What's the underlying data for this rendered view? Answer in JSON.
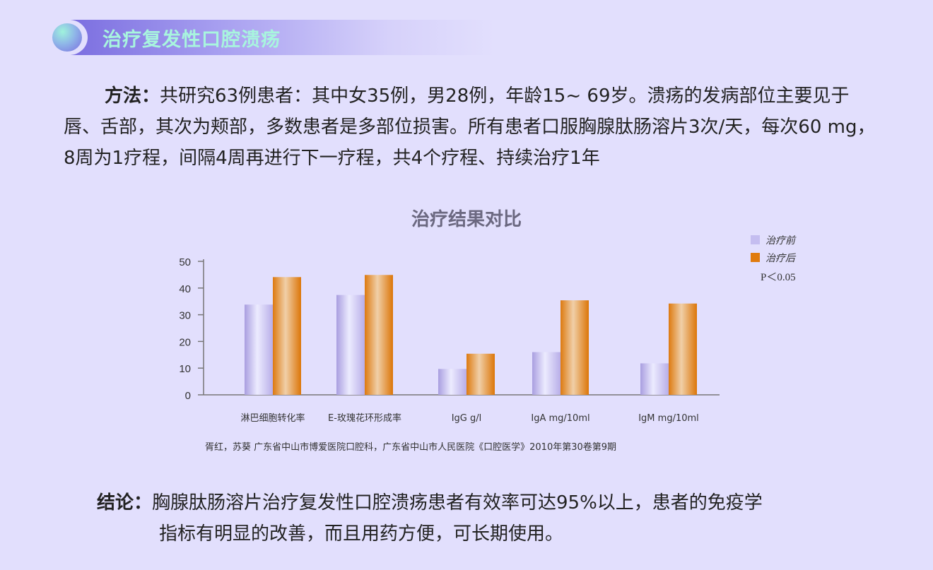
{
  "header": {
    "title": "治疗复发性口腔溃疡"
  },
  "method": {
    "label": "方法：",
    "text": "共研究63例患者：其中女35例，男28例，年龄15~ 69岁。溃疡的发病部位主要见于唇、舌部，其次为颊部，多数患者是多部位损害。所有患者口服胸腺肽肠溶片3次/天，每次60 mg，8周为1疗程，间隔4周再进行下一疗程，共4个疗程、持续治疗1年"
  },
  "chart_data": {
    "type": "bar",
    "title": "治疗结果对比",
    "categories": [
      "淋巴细胞转化率",
      "E-玫瑰花环形成率",
      "IgG g/l",
      "IgA mg/10ml",
      "IgM mg/10ml"
    ],
    "series": [
      {
        "name": "治疗前",
        "color": "#c4bdf0",
        "values": [
          33.8,
          37.4,
          9.7,
          16.0,
          11.8
        ]
      },
      {
        "name": "治疗后",
        "color": "#e07b0e",
        "values": [
          44.1,
          44.9,
          15.4,
          35.4,
          34.2
        ]
      }
    ],
    "ylim": [
      0,
      50
    ],
    "yticks": [
      0,
      10,
      20,
      30,
      40,
      50
    ],
    "grid": false,
    "legend_position": "top-right",
    "annotation": "P＜0.05",
    "source": "胥红，苏葵    广东省中山市博爱医院口腔科，广东省中山市人民医院《口腔医学》2010年第30卷第9期"
  },
  "conclusion": {
    "label": "结论：",
    "line1": "胸腺肽肠溶片治疗复发性口腔溃疡患者有效率可达95%以上，患者的免疫学",
    "line2": "指标有明显的改善，而且用药方便，可长期使用。"
  }
}
